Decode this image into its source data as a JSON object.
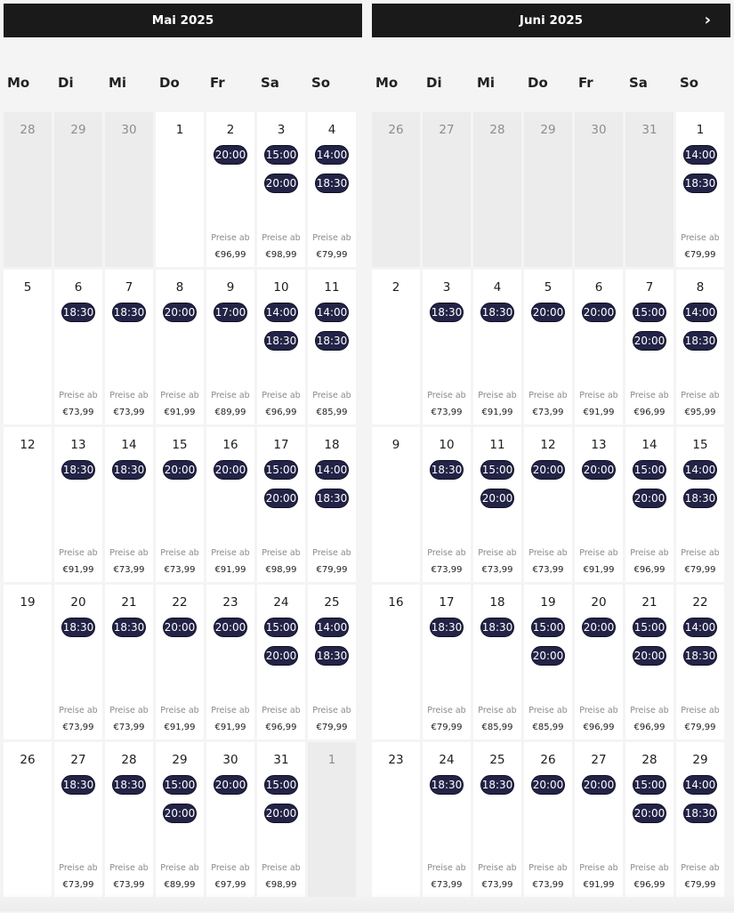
{
  "weekdays": [
    "Mo",
    "Di",
    "Mi",
    "Do",
    "Fr",
    "Sa",
    "So"
  ],
  "price_label": "Preise ab",
  "months": [
    {
      "title": "Mai 2025",
      "has_next": false,
      "weeks": [
        [
          {
            "d": "28",
            "out": true
          },
          {
            "d": "29",
            "out": true
          },
          {
            "d": "30",
            "out": true
          },
          {
            "d": "1"
          },
          {
            "d": "2",
            "times": [
              "20:00"
            ],
            "price": "€96,99"
          },
          {
            "d": "3",
            "times": [
              "15:00",
              "20:00"
            ],
            "price": "€98,99"
          },
          {
            "d": "4",
            "times": [
              "14:00",
              "18:30"
            ],
            "price": "€79,99"
          }
        ],
        [
          {
            "d": "5"
          },
          {
            "d": "6",
            "times": [
              "18:30"
            ],
            "price": "€73,99"
          },
          {
            "d": "7",
            "times": [
              "18:30"
            ],
            "price": "€73,99"
          },
          {
            "d": "8",
            "times": [
              "20:00"
            ],
            "price": "€91,99"
          },
          {
            "d": "9",
            "times": [
              "17:00"
            ],
            "price": "€89,99"
          },
          {
            "d": "10",
            "times": [
              "14:00",
              "18:30"
            ],
            "price": "€96,99"
          },
          {
            "d": "11",
            "times": [
              "14:00",
              "18:30"
            ],
            "price": "€85,99"
          }
        ],
        [
          {
            "d": "12"
          },
          {
            "d": "13",
            "times": [
              "18:30"
            ],
            "price": "€91,99"
          },
          {
            "d": "14",
            "times": [
              "18:30"
            ],
            "price": "€73,99"
          },
          {
            "d": "15",
            "times": [
              "20:00"
            ],
            "price": "€73,99"
          },
          {
            "d": "16",
            "times": [
              "20:00"
            ],
            "price": "€91,99"
          },
          {
            "d": "17",
            "times": [
              "15:00",
              "20:00"
            ],
            "price": "€98,99"
          },
          {
            "d": "18",
            "times": [
              "14:00",
              "18:30"
            ],
            "price": "€79,99"
          }
        ],
        [
          {
            "d": "19"
          },
          {
            "d": "20",
            "times": [
              "18:30"
            ],
            "price": "€73,99"
          },
          {
            "d": "21",
            "times": [
              "18:30"
            ],
            "price": "€73,99"
          },
          {
            "d": "22",
            "times": [
              "20:00"
            ],
            "price": "€91,99"
          },
          {
            "d": "23",
            "times": [
              "20:00"
            ],
            "price": "€91,99"
          },
          {
            "d": "24",
            "times": [
              "15:00",
              "20:00"
            ],
            "price": "€96,99"
          },
          {
            "d": "25",
            "times": [
              "14:00",
              "18:30"
            ],
            "price": "€79,99"
          }
        ],
        [
          {
            "d": "26"
          },
          {
            "d": "27",
            "times": [
              "18:30"
            ],
            "price": "€73,99"
          },
          {
            "d": "28",
            "times": [
              "18:30"
            ],
            "price": "€73,99"
          },
          {
            "d": "29",
            "times": [
              "15:00",
              "20:00"
            ],
            "price": "€89,99"
          },
          {
            "d": "30",
            "times": [
              "20:00"
            ],
            "price": "€97,99"
          },
          {
            "d": "31",
            "times": [
              "15:00",
              "20:00"
            ],
            "price": "€98,99"
          },
          {
            "d": "1",
            "out": true
          }
        ]
      ]
    },
    {
      "title": "Juni 2025",
      "has_next": true,
      "next_icon": "›",
      "weeks": [
        [
          {
            "d": "26",
            "out": true
          },
          {
            "d": "27",
            "out": true
          },
          {
            "d": "28",
            "out": true
          },
          {
            "d": "29",
            "out": true
          },
          {
            "d": "30",
            "out": true
          },
          {
            "d": "31",
            "out": true
          },
          {
            "d": "1",
            "times": [
              "14:00",
              "18:30"
            ],
            "price": "€79,99"
          }
        ],
        [
          {
            "d": "2"
          },
          {
            "d": "3",
            "times": [
              "18:30"
            ],
            "price": "€73,99"
          },
          {
            "d": "4",
            "times": [
              "18:30"
            ],
            "price": "€91,99"
          },
          {
            "d": "5",
            "times": [
              "20:00"
            ],
            "price": "€73,99"
          },
          {
            "d": "6",
            "times": [
              "20:00"
            ],
            "price": "€91,99"
          },
          {
            "d": "7",
            "times": [
              "15:00",
              "20:00"
            ],
            "price": "€96,99"
          },
          {
            "d": "8",
            "times": [
              "14:00",
              "18:30"
            ],
            "price": "€95,99"
          }
        ],
        [
          {
            "d": "9"
          },
          {
            "d": "10",
            "times": [
              "18:30"
            ],
            "price": "€73,99"
          },
          {
            "d": "11",
            "times": [
              "15:00",
              "20:00"
            ],
            "price": "€73,99"
          },
          {
            "d": "12",
            "times": [
              "20:00"
            ],
            "price": "€73,99"
          },
          {
            "d": "13",
            "times": [
              "20:00"
            ],
            "price": "€91,99"
          },
          {
            "d": "14",
            "times": [
              "15:00",
              "20:00"
            ],
            "price": "€96,99"
          },
          {
            "d": "15",
            "times": [
              "14:00",
              "18:30"
            ],
            "price": "€79,99"
          }
        ],
        [
          {
            "d": "16"
          },
          {
            "d": "17",
            "times": [
              "18:30"
            ],
            "price": "€79,99"
          },
          {
            "d": "18",
            "times": [
              "18:30"
            ],
            "price": "€85,99"
          },
          {
            "d": "19",
            "times": [
              "15:00",
              "20:00"
            ],
            "price": "€85,99"
          },
          {
            "d": "20",
            "times": [
              "20:00"
            ],
            "price": "€96,99"
          },
          {
            "d": "21",
            "times": [
              "15:00",
              "20:00"
            ],
            "price": "€96,99"
          },
          {
            "d": "22",
            "times": [
              "14:00",
              "18:30"
            ],
            "price": "€79,99"
          }
        ],
        [
          {
            "d": "23"
          },
          {
            "d": "24",
            "times": [
              "18:30"
            ],
            "price": "€73,99"
          },
          {
            "d": "25",
            "times": [
              "18:30"
            ],
            "price": "€73,99"
          },
          {
            "d": "26",
            "times": [
              "20:00"
            ],
            "price": "€73,99"
          },
          {
            "d": "27",
            "times": [
              "20:00"
            ],
            "price": "€91,99"
          },
          {
            "d": "28",
            "times": [
              "15:00",
              "20:00"
            ],
            "price": "€96,99"
          },
          {
            "d": "29",
            "times": [
              "14:00",
              "18:30"
            ],
            "price": "€79,99"
          }
        ]
      ]
    }
  ]
}
